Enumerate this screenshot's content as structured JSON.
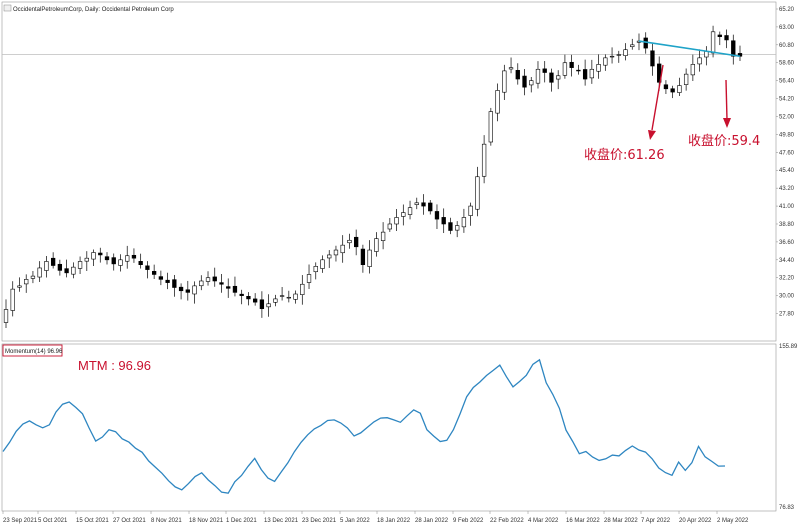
{
  "header": {
    "main_title": "OccidentalPetroleumCorp, Daily:  Occidental Petroleum Corp",
    "indicator_label": "Momentum(14) 96.96"
  },
  "annotations": {
    "close_1": "收盘价:61.26",
    "close_2": "收盘价:59.4",
    "mtm": "MTM : 96.96"
  },
  "colors": {
    "candle_up": "#ffffff",
    "candle_down": "#000000",
    "momentum_line": "#2e86c1",
    "trend_line": "#1fa3c8",
    "annotation": "#c8102e"
  },
  "chart_data": [
    {
      "type": "candlestick",
      "ylim": [
        26.15,
        65.2
      ],
      "y_tick_labels": [
        "65.20",
        "63.00",
        "60.80",
        "58.60",
        "56.40",
        "54.20",
        "52.00",
        "49.80",
        "47.60",
        "45.40",
        "43.20",
        "41.00",
        "38.80",
        "36.60",
        "34.40",
        "32.20",
        "30.00",
        "27.80"
      ],
      "x_tick_labels": [
        "23 Sep 2021",
        "5 Oct 2021",
        "15 Oct 2021",
        "27 Oct 2021",
        "8 Nov 2021",
        "18 Nov 2021",
        "1 Dec 2021",
        "13 Dec 2021",
        "23 Dec 2021",
        "5 Jan 2022",
        "18 Jan 2022",
        "28 Jan 2022",
        "9 Feb 2022",
        "22 Feb 2022",
        "4 Mar 2022",
        "16 Mar 2022",
        "28 Mar 2022",
        "7 Apr 2022",
        "20 Apr 2022",
        "2 May 2022"
      ],
      "reference_line": 59.6,
      "closes": [
        28.3,
        30.8,
        31.2,
        32.0,
        32.4,
        33.4,
        34.2,
        33.7,
        33.1,
        32.8,
        33.5,
        34.2,
        34.6,
        35.3,
        35.0,
        34.4,
        33.9,
        34.4,
        34.9,
        34.6,
        33.8,
        33.2,
        32.6,
        32.0,
        31.6,
        31.0,
        30.6,
        30.4,
        31.2,
        31.8,
        32.2,
        31.8,
        31.4,
        30.9,
        30.4,
        30.0,
        29.6,
        29.2,
        28.4,
        29.0,
        29.6,
        30.0,
        29.8,
        30.2,
        31.4,
        32.6,
        33.6,
        34.4,
        35.0,
        35.6,
        36.2,
        36.8,
        36.0,
        33.8,
        35.6,
        37.0,
        37.8,
        38.8,
        39.6,
        40.2,
        40.8,
        41.4,
        41.0,
        40.4,
        39.4,
        38.8,
        38.0,
        38.6,
        39.6,
        41.0,
        44.6,
        48.6,
        52.6,
        55.2,
        57.6,
        58.0,
        56.6,
        55.6,
        56.4,
        57.8,
        57.4,
        56.2,
        57.0,
        58.6,
        58.0,
        57.6,
        56.6,
        57.8,
        58.4,
        59.2,
        59.4,
        59.6,
        60.2,
        60.8,
        61.26,
        60.4,
        58.2,
        56.2,
        55.4,
        55.0,
        55.8,
        57.2,
        58.4,
        59.2,
        60.0,
        62.4,
        61.8,
        61.4,
        59.4,
        59.4
      ],
      "trend_line": [
        {
          "x": 94,
          "y": 61.26
        },
        {
          "x": 109,
          "y": 59.4
        }
      ]
    },
    {
      "type": "line",
      "ylim": [
        76.83,
        155.89
      ],
      "y_tick_labels": [
        "155.89",
        "76.83"
      ],
      "values": [
        104.1,
        108.6,
        114.0,
        117.6,
        119.1,
        117.2,
        115.7,
        117.2,
        123.5,
        127.3,
        128.4,
        125.7,
        122.6,
        115.6,
        109.2,
        111.2,
        114.8,
        113.8,
        110.3,
        108.7,
        105.7,
        103.7,
        99.4,
        96.4,
        93.4,
        89.7,
        86.7,
        85.3,
        88.3,
        91.8,
        93.6,
        90.1,
        87.3,
        84.1,
        83.6,
        89.2,
        92.3,
        96.8,
        100.7,
        95.2,
        91.0,
        89.4,
        94.0,
        98.5,
        104.0,
        108.6,
        112.3,
        115.2,
        116.9,
        119.3,
        119.6,
        118.1,
        115.6,
        111.7,
        113.2,
        115.9,
        118.6,
        120.5,
        120.7,
        119.6,
        118.4,
        121.6,
        124.5,
        122.9,
        114.8,
        111.7,
        109.0,
        109.6,
        114.8,
        122.5,
        131.0,
        135.5,
        138.2,
        141.4,
        143.9,
        146.5,
        140.8,
        135.8,
        138.5,
        141.5,
        146.9,
        149.1,
        137.8,
        132.1,
        125.3,
        114.6,
        109.0,
        103.0,
        104.1,
        101.4,
        99.7,
        100.5,
        102.3,
        101.9,
        104.6,
        106.8,
        104.8,
        103.8,
        100.5,
        96.0,
        93.7,
        92.4,
        98.9,
        94.8,
        98.6,
        106.6,
        101.5,
        99.2,
        96.9,
        96.96
      ]
    }
  ]
}
